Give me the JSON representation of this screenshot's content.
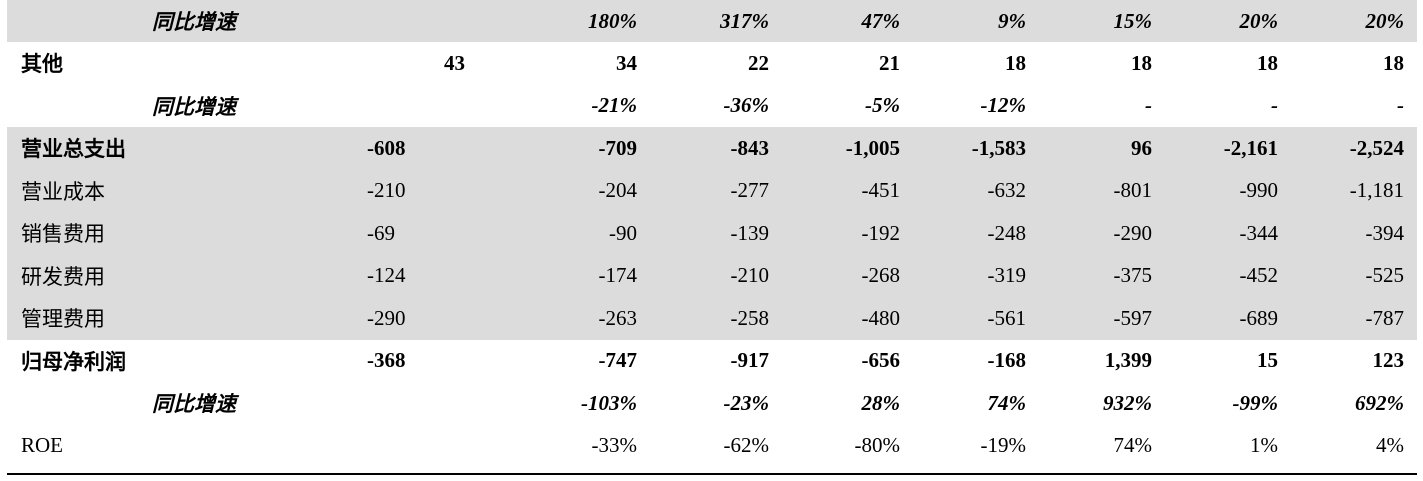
{
  "rows": [
    {
      "label": "同比增速",
      "c0": "",
      "c1": "180%",
      "c2": "317%",
      "c3": "47%",
      "c4": "9%",
      "c5": "15%",
      "c6": "20%",
      "c7": "20%"
    },
    {
      "label": "其他",
      "c0": "43",
      "c1": "34",
      "c2": "22",
      "c3": "21",
      "c4": "18",
      "c5": "18",
      "c6": "18",
      "c7": "18"
    },
    {
      "label": "同比增速",
      "c0": "",
      "c1": "-21%",
      "c2": "-36%",
      "c3": "-5%",
      "c4": "-12%",
      "c5": "-",
      "c6": "-",
      "c7": "-"
    },
    {
      "label": "营业总支出",
      "c0": "-608",
      "c1": "-709",
      "c2": "-843",
      "c3": "-1,005",
      "c4": "-1,583",
      "c5": "96",
      "c6": "-2,161",
      "c7": "-2,524"
    },
    {
      "label": "营业成本",
      "c0": "-210",
      "c1": "-204",
      "c2": "-277",
      "c3": "-451",
      "c4": "-632",
      "c5": "-801",
      "c6": "-990",
      "c7": "-1,181"
    },
    {
      "label": "销售费用",
      "c0": "-69",
      "c1": "-90",
      "c2": "-139",
      "c3": "-192",
      "c4": "-248",
      "c5": "-290",
      "c6": "-344",
      "c7": "-394"
    },
    {
      "label": "研发费用",
      "c0": "-124",
      "c1": "-174",
      "c2": "-210",
      "c3": "-268",
      "c4": "-319",
      "c5": "-375",
      "c6": "-452",
      "c7": "-525"
    },
    {
      "label": "管理费用",
      "c0": "-290",
      "c1": "-263",
      "c2": "-258",
      "c3": "-480",
      "c4": "-561",
      "c5": "-597",
      "c6": "-689",
      "c7": "-787"
    },
    {
      "label": "归母净利润",
      "c0": "-368",
      "c1": "-747",
      "c2": "-917",
      "c3": "-656",
      "c4": "-168",
      "c5": "1,399",
      "c6": "15",
      "c7": "123"
    },
    {
      "label": "同比增速",
      "c0": "",
      "c1": "-103%",
      "c2": "-23%",
      "c3": "28%",
      "c4": "74%",
      "c5": "932%",
      "c6": "-99%",
      "c7": "692%"
    },
    {
      "label": "ROE",
      "c0": "",
      "c1": "-33%",
      "c2": "-62%",
      "c3": "-80%",
      "c4": "-19%",
      "c5": "74%",
      "c6": "1%",
      "c7": "4%"
    }
  ]
}
